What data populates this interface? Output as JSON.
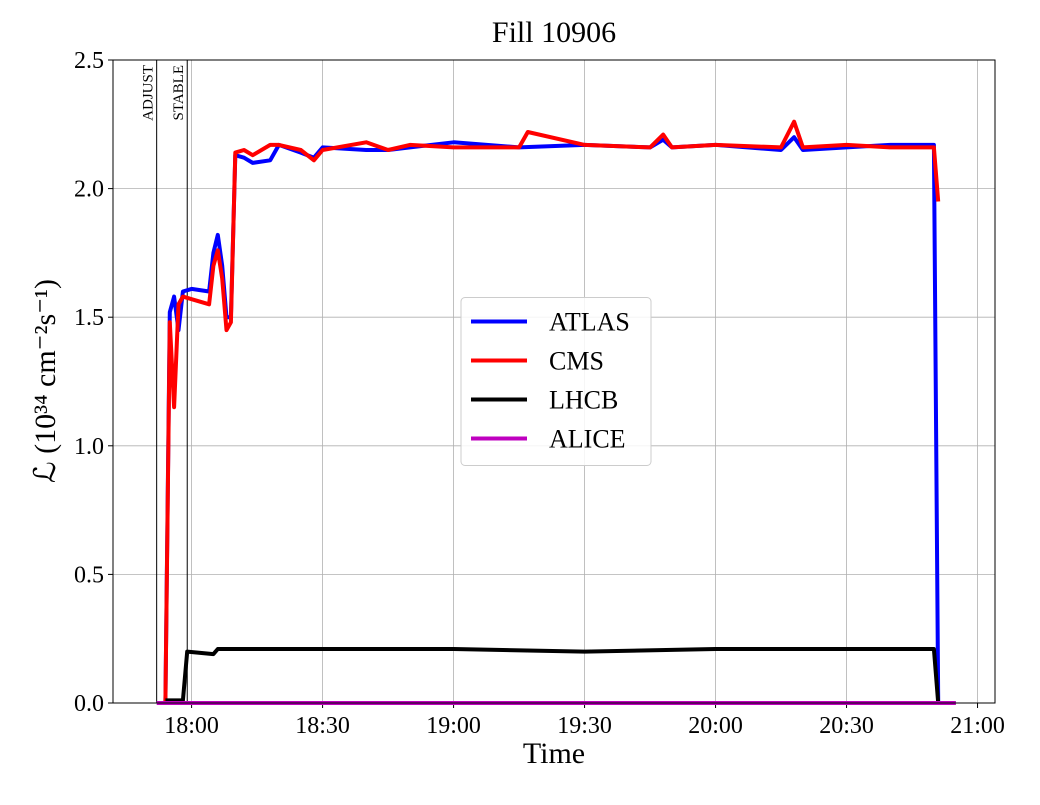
{
  "chart_data": {
    "type": "line",
    "title": "Fill 10906",
    "x_label": "Time",
    "y_label": "ℒ (10³⁴ cm⁻²s⁻¹)",
    "xlim": [
      "17:42",
      "21:04"
    ],
    "xticks": [
      "18:00",
      "18:30",
      "19:00",
      "19:30",
      "20:00",
      "20:30",
      "21:00"
    ],
    "ylim": [
      0,
      2.5
    ],
    "yticks": [
      {
        "value": 0,
        "label": "0.0"
      },
      0.5,
      {
        "value": 1,
        "label": "1.0"
      },
      1.5,
      {
        "value": 2,
        "label": "2.0"
      },
      2.5
    ],
    "grid": true,
    "legend": "center",
    "annotations": [
      {
        "text": "ADJUST",
        "x": "17:52"
      },
      {
        "text": "STABLE",
        "x": "17:59"
      }
    ],
    "series": [
      {
        "name": "ATLAS",
        "color": "#0000ff",
        "x": [
          "17:54",
          "17:55",
          "17:56",
          "17:57",
          "17:58",
          "18:00",
          "18:04",
          "18:05",
          "18:06",
          "18:07",
          "18:08",
          "18:09",
          "18:10",
          "18:12",
          "18:14",
          "18:18",
          "18:20",
          "18:25",
          "18:28",
          "18:30",
          "18:40",
          "18:45",
          "18:50",
          "19:00",
          "19:15",
          "19:30",
          "19:45",
          "19:48",
          "19:50",
          "20:00",
          "20:15",
          "20:18",
          "20:20",
          "20:30",
          "20:40",
          "20:50",
          "20:51"
        ],
        "values": [
          0,
          1.52,
          1.58,
          1.45,
          1.6,
          1.61,
          1.6,
          1.75,
          1.82,
          1.7,
          1.5,
          1.5,
          2.13,
          2.12,
          2.1,
          2.11,
          2.17,
          2.14,
          2.12,
          2.16,
          2.15,
          2.15,
          2.16,
          2.18,
          2.16,
          2.17,
          2.16,
          2.19,
          2.16,
          2.17,
          2.15,
          2.2,
          2.15,
          2.16,
          2.17,
          2.17,
          0
        ]
      },
      {
        "name": "CMS",
        "color": "#ff0000",
        "x": [
          "17:54",
          "17:55",
          "17:56",
          "17:57",
          "17:58",
          "18:00",
          "18:04",
          "18:05",
          "18:06",
          "18:07",
          "18:08",
          "18:09",
          "18:10",
          "18:12",
          "18:14",
          "18:18",
          "18:20",
          "18:25",
          "18:28",
          "18:30",
          "18:40",
          "18:45",
          "18:50",
          "19:00",
          "19:15",
          "19:17",
          "19:30",
          "19:45",
          "19:48",
          "19:50",
          "20:00",
          "20:15",
          "20:18",
          "20:20",
          "20:30",
          "20:40",
          "20:50",
          "20:51"
        ],
        "values": [
          0,
          1.48,
          1.15,
          1.55,
          1.58,
          1.57,
          1.55,
          1.7,
          1.76,
          1.65,
          1.45,
          1.48,
          2.14,
          2.15,
          2.13,
          2.17,
          2.17,
          2.15,
          2.11,
          2.15,
          2.18,
          2.15,
          2.17,
          2.16,
          2.16,
          2.22,
          2.17,
          2.16,
          2.21,
          2.16,
          2.17,
          2.16,
          2.26,
          2.16,
          2.17,
          2.16,
          2.16,
          1.95
        ]
      },
      {
        "name": "LHCB",
        "color": "#000000",
        "x": [
          "17:54",
          "17:58",
          "17:59",
          "18:05",
          "18:06",
          "18:30",
          "19:00",
          "19:30",
          "20:00",
          "20:30",
          "20:50",
          "20:51",
          "20:55"
        ],
        "values": [
          0.01,
          0.01,
          0.2,
          0.19,
          0.21,
          0.21,
          0.21,
          0.2,
          0.21,
          0.21,
          0.21,
          0,
          0
        ]
      },
      {
        "name": "ALICE",
        "color": "#bf00bf",
        "x": [
          "17:52",
          "20:55"
        ],
        "values": [
          0,
          0
        ]
      }
    ]
  }
}
